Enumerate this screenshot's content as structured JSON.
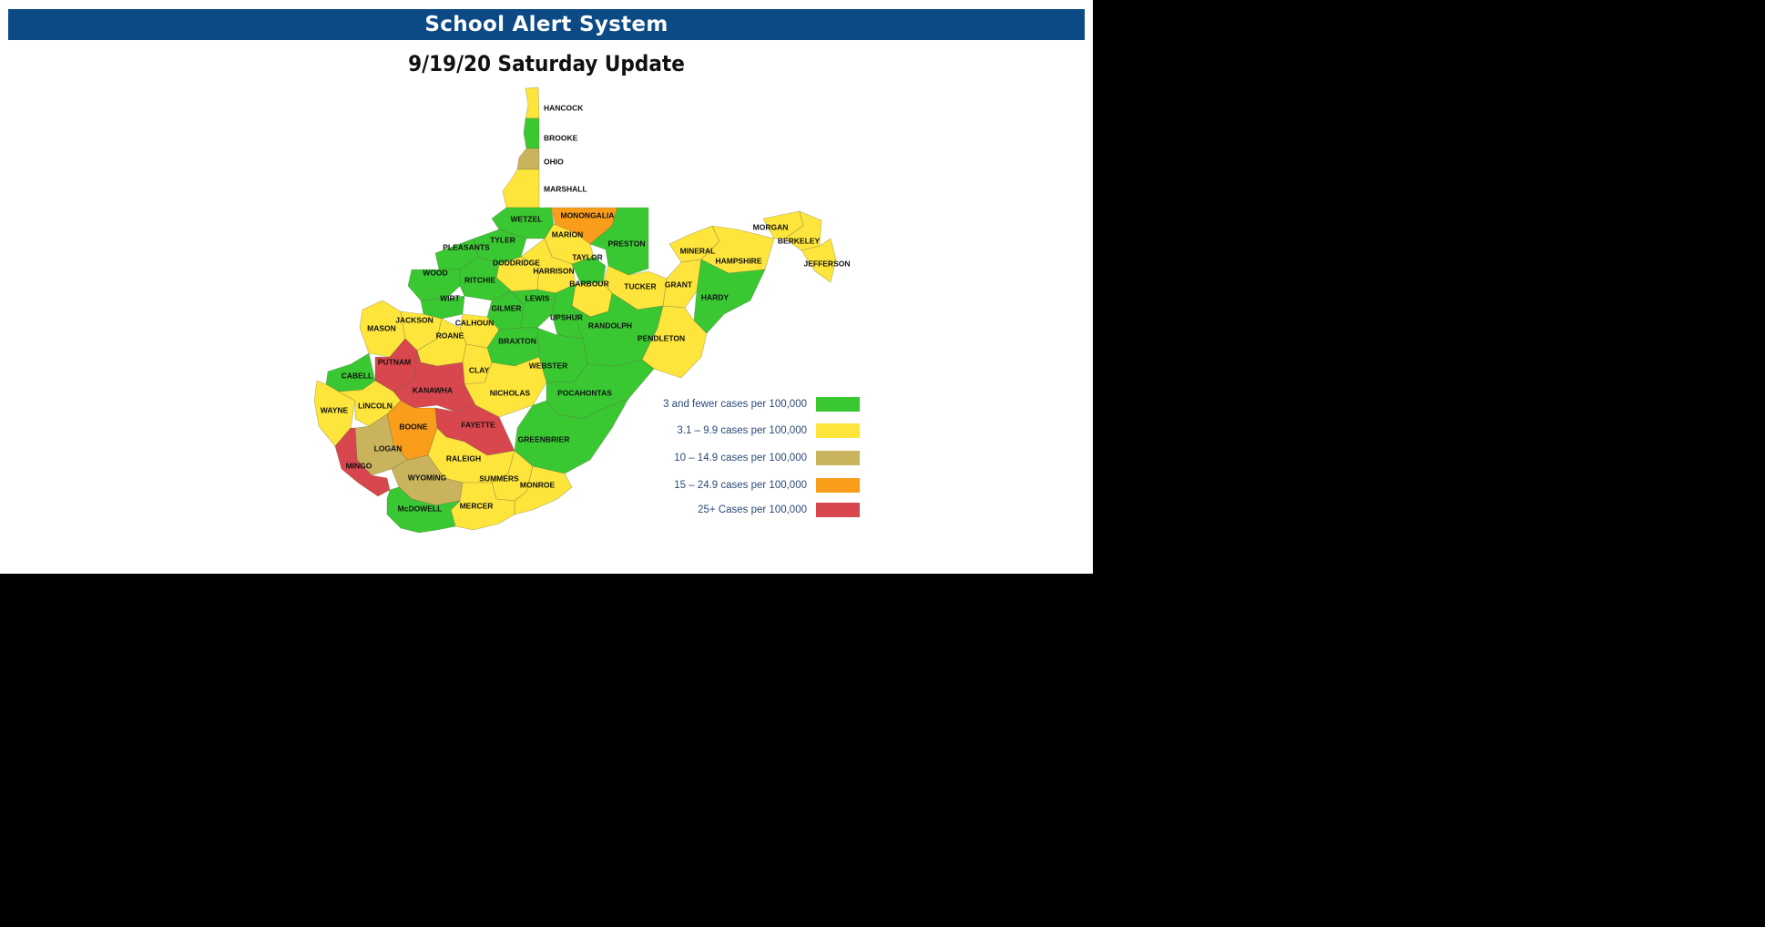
{
  "banner": {
    "title": "School Alert System"
  },
  "subtitle": "9/19/20 Saturday Update",
  "colors": {
    "green": "#39c832",
    "yellow": "#fde53b",
    "gold": "#c9b35d",
    "orange": "#f99d1a",
    "red": "#d8474d"
  },
  "legend": [
    {
      "label": "3 and fewer cases per 100,000",
      "color": "#39c832"
    },
    {
      "label": "3.1 – 9.9 cases per 100,000",
      "color": "#fde53b"
    },
    {
      "label": "10 – 14.9 cases per 100,000",
      "color": "#c9b35d"
    },
    {
      "label": "15 – 24.9 cases per 100,000",
      "color": "#f99d1a"
    },
    {
      "label": "25+ Cases per 100,000",
      "color": "#d8474d"
    }
  ],
  "counties": [
    {
      "name": "HANCOCK",
      "color": "yellow"
    },
    {
      "name": "BROOKE",
      "color": "green"
    },
    {
      "name": "OHIO",
      "color": "gold"
    },
    {
      "name": "MARSHALL",
      "color": "yellow"
    },
    {
      "name": "WETZEL",
      "color": "green"
    },
    {
      "name": "MONONGALIA",
      "color": "orange"
    },
    {
      "name": "PRESTON",
      "color": "green"
    },
    {
      "name": "MARION",
      "color": "yellow"
    },
    {
      "name": "TYLER",
      "color": "green"
    },
    {
      "name": "PLEASANTS",
      "color": "green"
    },
    {
      "name": "DODDRIDGE",
      "color": "yellow"
    },
    {
      "name": "HARRISON",
      "color": "yellow"
    },
    {
      "name": "TAYLOR",
      "color": "green"
    },
    {
      "name": "BARBOUR",
      "color": "yellow"
    },
    {
      "name": "TUCKER",
      "color": "yellow"
    },
    {
      "name": "WOOD",
      "color": "green"
    },
    {
      "name": "RITCHIE",
      "color": "green"
    },
    {
      "name": "WIRT",
      "color": "green"
    },
    {
      "name": "GILMER",
      "color": "green"
    },
    {
      "name": "LEWIS",
      "color": "green"
    },
    {
      "name": "UPSHUR",
      "color": "green"
    },
    {
      "name": "RANDOLPH",
      "color": "green"
    },
    {
      "name": "MINERAL",
      "color": "yellow"
    },
    {
      "name": "GRANT",
      "color": "yellow"
    },
    {
      "name": "HAMPSHIRE",
      "color": "yellow"
    },
    {
      "name": "HARDY",
      "color": "green"
    },
    {
      "name": "PENDLETON",
      "color": "yellow"
    },
    {
      "name": "MORGAN",
      "color": "yellow"
    },
    {
      "name": "BERKELEY",
      "color": "yellow"
    },
    {
      "name": "JEFFERSON",
      "color": "yellow"
    },
    {
      "name": "MASON",
      "color": "yellow"
    },
    {
      "name": "JACKSON",
      "color": "yellow"
    },
    {
      "name": "CALHOUN",
      "color": "yellow"
    },
    {
      "name": "ROANE",
      "color": "yellow"
    },
    {
      "name": "BRAXTON",
      "color": "green"
    },
    {
      "name": "WEBSTER",
      "color": "green"
    },
    {
      "name": "CLAY",
      "color": "yellow"
    },
    {
      "name": "NICHOLAS",
      "color": "yellow"
    },
    {
      "name": "POCAHONTAS",
      "color": "green"
    },
    {
      "name": "GREENBRIER",
      "color": "green"
    },
    {
      "name": "PUTNAM",
      "color": "red"
    },
    {
      "name": "KANAWHA",
      "color": "red"
    },
    {
      "name": "CABELL",
      "color": "green"
    },
    {
      "name": "WAYNE",
      "color": "yellow"
    },
    {
      "name": "LINCOLN",
      "color": "yellow"
    },
    {
      "name": "BOONE",
      "color": "orange"
    },
    {
      "name": "FAYETTE",
      "color": "red"
    },
    {
      "name": "LOGAN",
      "color": "gold"
    },
    {
      "name": "MINGO",
      "color": "red"
    },
    {
      "name": "RALEIGH",
      "color": "yellow"
    },
    {
      "name": "WYOMING",
      "color": "gold"
    },
    {
      "name": "SUMMERS",
      "color": "yellow"
    },
    {
      "name": "MONROE",
      "color": "yellow"
    },
    {
      "name": "MERCER",
      "color": "yellow"
    },
    {
      "name": "McDOWELL",
      "color": "green"
    }
  ]
}
